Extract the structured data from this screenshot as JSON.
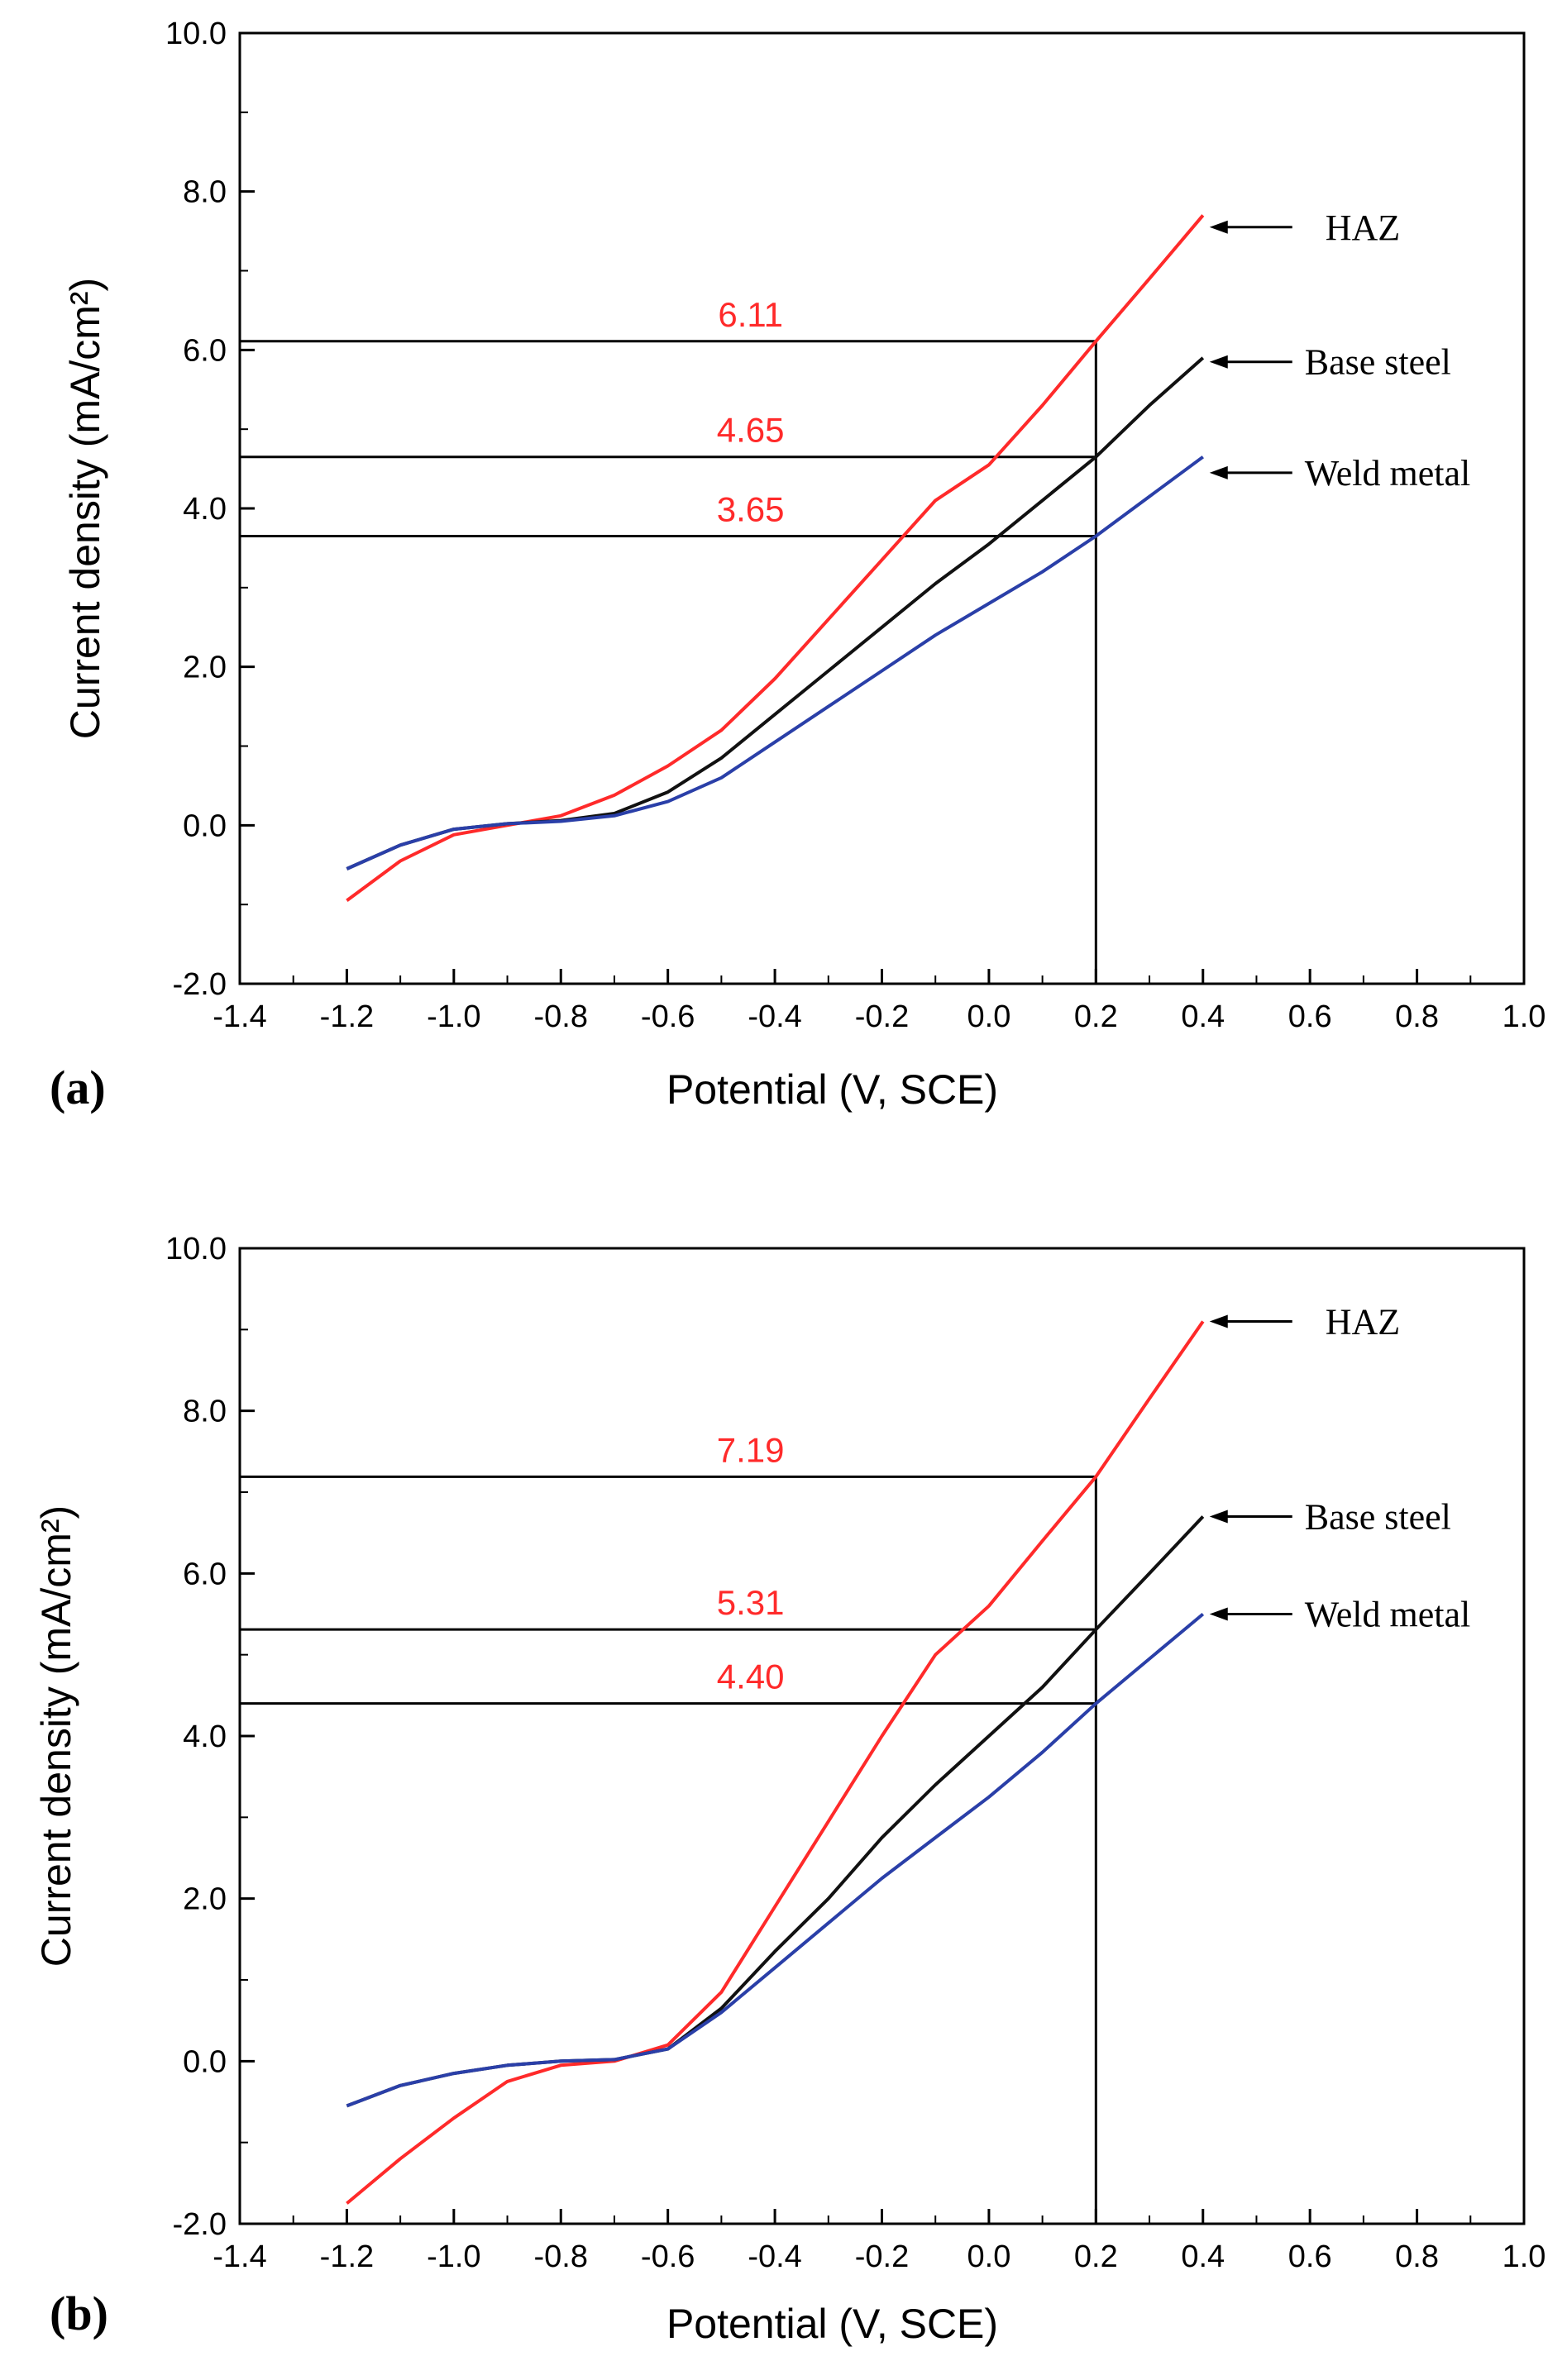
{
  "figure": {
    "colors": {
      "haz": "#ff2a2a",
      "base": "#111111",
      "weld": "#2a3fa8",
      "value_label": "#ff2a2a",
      "axis": "#000000"
    }
  },
  "chart_data": [
    {
      "type": "line",
      "panel_label": "(a)",
      "xlabel": "Potential (V, SCE)",
      "ylabel": "Current density (mA/cm²)",
      "xlim": [
        -1.4,
        1.0
      ],
      "ylim": [
        -2.0,
        10.0
      ],
      "x_ticks": [
        -1.4,
        -1.2,
        -1.0,
        -0.8,
        -0.6,
        -0.4,
        -0.2,
        0.0,
        0.2,
        0.4,
        0.6,
        0.8,
        1.0
      ],
      "x_tick_labels": [
        "-1.4",
        "-1.2",
        "-1.0",
        "-0.8",
        "-0.6",
        "-0.4",
        "-0.2",
        "0.0",
        "0.2",
        "0.4",
        "0.6",
        "0.8",
        "1.0"
      ],
      "y_ticks": [
        -2.0,
        0.0,
        2.0,
        4.0,
        6.0,
        8.0,
        10.0
      ],
      "y_tick_labels": [
        "-2.0",
        "0.0",
        "2.0",
        "4.0",
        "6.0",
        "8.0",
        "10.0"
      ],
      "series": [
        {
          "name": "HAZ",
          "color": "#ff2a2a",
          "x": [
            -1.2,
            -1.1,
            -1.0,
            -0.9,
            -0.8,
            -0.7,
            -0.6,
            -0.5,
            -0.4,
            -0.3,
            -0.2,
            -0.1,
            0.0,
            0.1,
            0.2,
            0.3,
            0.4
          ],
          "y": [
            -0.95,
            -0.45,
            -0.12,
            0.0,
            0.12,
            0.38,
            0.75,
            1.2,
            1.85,
            2.6,
            3.35,
            4.1,
            4.55,
            5.3,
            6.11,
            6.9,
            7.7
          ]
        },
        {
          "name": "Base steel",
          "color": "#111111",
          "x": [
            -1.2,
            -1.1,
            -1.0,
            -0.9,
            -0.8,
            -0.7,
            -0.6,
            -0.5,
            -0.4,
            -0.3,
            -0.2,
            -0.1,
            0.0,
            0.1,
            0.2,
            0.3,
            0.4
          ],
          "y": [
            -0.55,
            -0.25,
            -0.05,
            0.02,
            0.06,
            0.15,
            0.42,
            0.85,
            1.4,
            1.95,
            2.5,
            3.05,
            3.55,
            4.1,
            4.65,
            5.3,
            5.9
          ]
        },
        {
          "name": "Weld metal",
          "color": "#2a3fa8",
          "x": [
            -1.2,
            -1.1,
            -1.0,
            -0.9,
            -0.8,
            -0.7,
            -0.6,
            -0.5,
            -0.4,
            -0.3,
            -0.2,
            -0.1,
            0.0,
            0.1,
            0.2,
            0.3,
            0.4
          ],
          "y": [
            -0.55,
            -0.25,
            -0.05,
            0.02,
            0.05,
            0.12,
            0.3,
            0.6,
            1.05,
            1.5,
            1.95,
            2.4,
            2.8,
            3.2,
            3.65,
            4.15,
            4.65
          ]
        }
      ],
      "reference_x": 0.2,
      "reference_lines": [
        {
          "y": 6.11,
          "label": "6.11"
        },
        {
          "y": 4.65,
          "label": "4.65"
        },
        {
          "y": 3.65,
          "label": "3.65"
        }
      ],
      "annotations": [
        {
          "text": "HAZ",
          "y": 7.55
        },
        {
          "text": "Base steel",
          "y": 5.85
        },
        {
          "text": "Weld metal",
          "y": 4.45
        }
      ]
    },
    {
      "type": "line",
      "panel_label": "(b)",
      "xlabel": "Potential (V, SCE)",
      "ylabel": "Current density (mA/cm²)",
      "xlim": [
        -1.4,
        1.0
      ],
      "ylim": [
        -2.0,
        10.0
      ],
      "x_ticks": [
        -1.4,
        -1.2,
        -1.0,
        -0.8,
        -0.6,
        -0.4,
        -0.2,
        0.0,
        0.2,
        0.4,
        0.6,
        0.8,
        1.0
      ],
      "x_tick_labels": [
        "-1.4",
        "-1.2",
        "-1.0",
        "-0.8",
        "-0.6",
        "-0.4",
        "-0.2",
        "0.0",
        "0.2",
        "0.4",
        "0.6",
        "0.8",
        "1.0"
      ],
      "y_ticks": [
        -2.0,
        0.0,
        2.0,
        4.0,
        6.0,
        8.0,
        10.0
      ],
      "y_tick_labels": [
        "-2.0",
        "0.0",
        "2.0",
        "4.0",
        "6.0",
        "8.0",
        "10.0"
      ],
      "series": [
        {
          "name": "HAZ",
          "color": "#ff2a2a",
          "x": [
            -1.2,
            -1.1,
            -1.0,
            -0.9,
            -0.8,
            -0.7,
            -0.6,
            -0.5,
            -0.4,
            -0.3,
            -0.2,
            -0.1,
            0.0,
            0.1,
            0.2,
            0.3,
            0.4
          ],
          "y": [
            -1.75,
            -1.2,
            -0.7,
            -0.25,
            -0.05,
            0.0,
            0.2,
            0.85,
            1.9,
            2.95,
            4.0,
            5.0,
            5.6,
            6.4,
            7.19,
            8.15,
            9.1
          ]
        },
        {
          "name": "Base steel",
          "color": "#111111",
          "x": [
            -1.2,
            -1.1,
            -1.0,
            -0.9,
            -0.8,
            -0.7,
            -0.6,
            -0.5,
            -0.4,
            -0.3,
            -0.2,
            -0.1,
            0.0,
            0.1,
            0.2,
            0.3,
            0.4
          ],
          "y": [
            -0.55,
            -0.3,
            -0.15,
            -0.05,
            0.0,
            0.02,
            0.15,
            0.65,
            1.35,
            2.0,
            2.75,
            3.4,
            4.0,
            4.6,
            5.31,
            6.0,
            6.7
          ]
        },
        {
          "name": "Weld metal",
          "color": "#2a3fa8",
          "x": [
            -1.2,
            -1.1,
            -1.0,
            -0.9,
            -0.8,
            -0.7,
            -0.6,
            -0.5,
            -0.4,
            -0.3,
            -0.2,
            -0.1,
            0.0,
            0.1,
            0.2,
            0.3,
            0.4
          ],
          "y": [
            -0.55,
            -0.3,
            -0.15,
            -0.05,
            0.0,
            0.02,
            0.15,
            0.6,
            1.15,
            1.7,
            2.25,
            2.75,
            3.25,
            3.8,
            4.4,
            4.95,
            5.5
          ]
        }
      ],
      "reference_x": 0.2,
      "reference_lines": [
        {
          "y": 7.19,
          "label": "7.19"
        },
        {
          "y": 5.31,
          "label": "5.31"
        },
        {
          "y": 4.4,
          "label": "4.40"
        }
      ],
      "annotations": [
        {
          "text": "HAZ",
          "y": 9.1
        },
        {
          "text": "Base steel",
          "y": 6.7
        },
        {
          "text": "Weld metal",
          "y": 5.5
        }
      ]
    }
  ]
}
